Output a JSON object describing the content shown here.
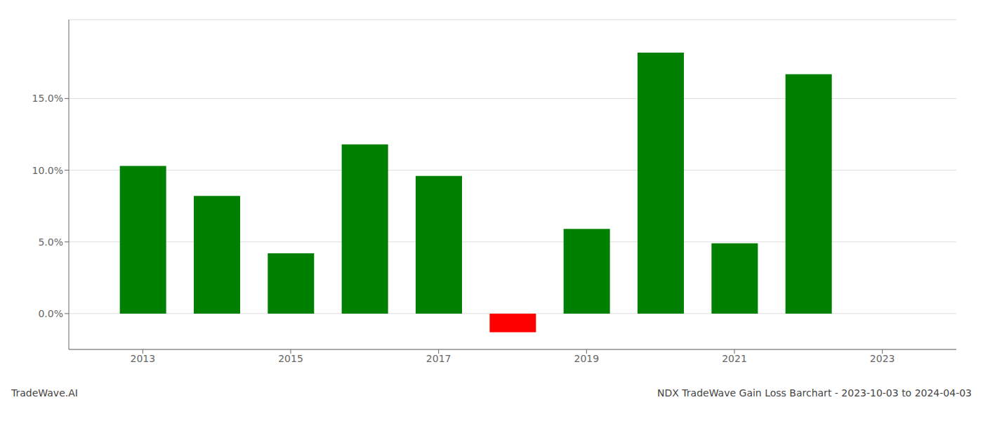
{
  "chart_data": {
    "type": "bar",
    "x": [
      2013,
      2014,
      2015,
      2016,
      2017,
      2018,
      2019,
      2020,
      2021,
      2022
    ],
    "values": [
      0.103,
      0.082,
      0.042,
      0.118,
      0.096,
      -0.013,
      0.059,
      0.182,
      0.049,
      0.167
    ],
    "colors": [
      "#008000",
      "#008000",
      "#008000",
      "#008000",
      "#008000",
      "#ff0000",
      "#008000",
      "#008000",
      "#008000",
      "#008000"
    ],
    "xlim": [
      2012.0,
      2024.0
    ],
    "xticks": [
      2013,
      2015,
      2017,
      2019,
      2021,
      2023
    ],
    "ylim": [
      -0.025,
      0.205
    ],
    "yticks": [
      {
        "value": 0.0,
        "label": "0.0%"
      },
      {
        "value": 0.05,
        "label": "5.0%"
      },
      {
        "value": 0.1,
        "label": "10.0%"
      },
      {
        "value": 0.15,
        "label": "15.0%"
      }
    ],
    "grid": "y",
    "annotations": [
      "TradeWave.AI",
      "NDX TradeWave Gain Loss Barchart - 2023-10-03 to 2024-04-03"
    ]
  }
}
